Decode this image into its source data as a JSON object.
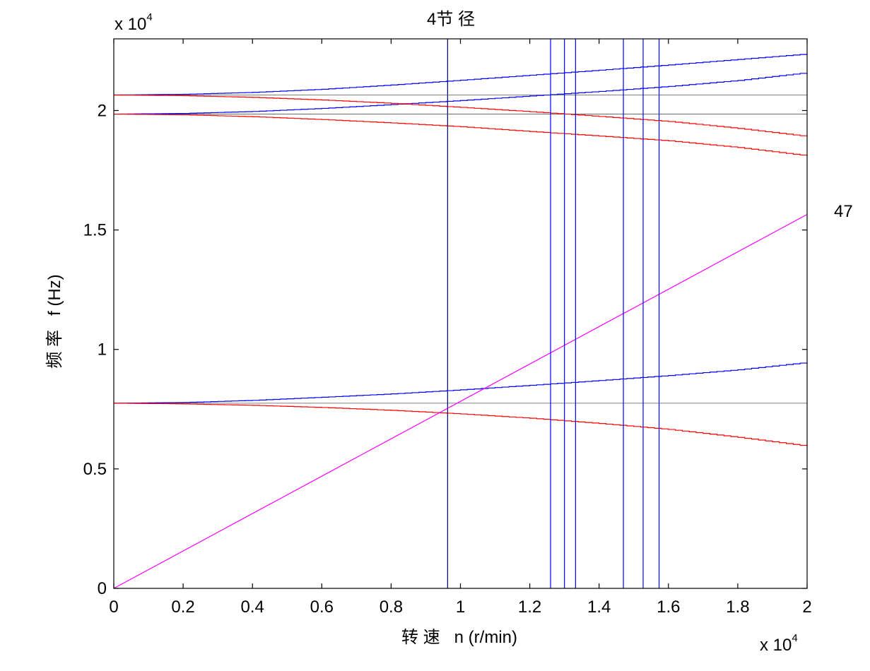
{
  "chart_data": {
    "type": "line",
    "title": "4节 径",
    "xlabel": "转 速   n (r/min)",
    "ylabel": "频 率   f (Hz)",
    "x_exponent": "x 10",
    "x_exponent_power": "4",
    "y_exponent": "x 10",
    "y_exponent_power": "4",
    "xlim": [
      0,
      2
    ],
    "ylim": [
      0,
      2.3
    ],
    "x_ticks": [
      0,
      0.2,
      0.4,
      0.6,
      0.8,
      1,
      1.2,
      1.4,
      1.6,
      1.8,
      2
    ],
    "x_tick_labels": [
      "0",
      "0.2",
      "0.4",
      "0.6",
      "0.8",
      "1",
      "1.2",
      "1.4",
      "1.6",
      "1.8",
      "2"
    ],
    "y_ticks": [
      0,
      0.5,
      1,
      1.5,
      2
    ],
    "y_tick_labels": [
      "0",
      "0.5",
      "1",
      "1.5",
      "2"
    ],
    "annotation": "47",
    "grid": false,
    "colors": {
      "blue": "#0000ff",
      "red": "#ff0000",
      "magenta": "#ff00ff",
      "dark": "#000066",
      "reference": "#555555"
    },
    "series": [
      {
        "color": "blue",
        "style": "step",
        "x": [
          0,
          0.2,
          0.4,
          0.6,
          0.8,
          1.0,
          1.2,
          1.4,
          1.6,
          1.8,
          2.0
        ],
        "y": [
          2.065,
          2.068,
          2.076,
          2.089,
          2.107,
          2.127,
          2.148,
          2.169,
          2.191,
          2.214,
          2.237
        ]
      },
      {
        "color": "blue",
        "style": "step",
        "x": [
          0,
          0.2,
          0.4,
          0.6,
          0.8,
          1.0,
          1.2,
          1.4,
          1.6,
          1.8,
          2.0
        ],
        "y": [
          1.985,
          1.988,
          1.996,
          2.009,
          2.025,
          2.042,
          2.061,
          2.08,
          2.101,
          2.126,
          2.159
        ]
      },
      {
        "color": "red",
        "style": "step",
        "x": [
          0,
          0.2,
          0.4,
          0.6,
          0.8,
          1.0,
          1.2,
          1.4,
          1.6,
          1.8,
          2.0
        ],
        "y": [
          2.065,
          2.062,
          2.055,
          2.044,
          2.03,
          2.013,
          1.995,
          1.975,
          1.954,
          1.925,
          1.891
        ]
      },
      {
        "color": "red",
        "style": "step",
        "x": [
          0,
          0.2,
          0.4,
          0.6,
          0.8,
          1.0,
          1.2,
          1.4,
          1.6,
          1.8,
          2.0
        ],
        "y": [
          1.985,
          1.982,
          1.974,
          1.962,
          1.948,
          1.932,
          1.912,
          1.893,
          1.873,
          1.845,
          1.81
        ]
      },
      {
        "color": "blue",
        "style": "step",
        "x": [
          0,
          0.2,
          0.4,
          0.6,
          0.8,
          1.0,
          1.2,
          1.4,
          1.6,
          1.8,
          2.0
        ],
        "y": [
          0.775,
          0.778,
          0.787,
          0.8,
          0.814,
          0.831,
          0.85,
          0.87,
          0.891,
          0.915,
          0.946
        ]
      },
      {
        "color": "red",
        "style": "step",
        "x": [
          0,
          0.2,
          0.4,
          0.6,
          0.8,
          1.0,
          1.2,
          1.4,
          1.6,
          1.8,
          2.0
        ],
        "y": [
          0.775,
          0.772,
          0.766,
          0.757,
          0.745,
          0.73,
          0.712,
          0.69,
          0.665,
          0.632,
          0.595
        ]
      },
      {
        "color": "magenta",
        "style": "line",
        "x": [
          0,
          2.0
        ],
        "y": [
          0,
          1.565
        ]
      }
    ],
    "reference_lines_y": [
      2.065,
      1.985,
      0.775
    ],
    "vertical_lines": [
      {
        "x": 0.963,
        "color": "dark"
      },
      {
        "x": 1.26,
        "color": "blue"
      },
      {
        "x": 1.3,
        "color": "blue"
      },
      {
        "x": 1.332,
        "color": "blue"
      },
      {
        "x": 1.47,
        "color": "blue"
      },
      {
        "x": 1.527,
        "color": "blue"
      },
      {
        "x": 1.573,
        "color": "blue"
      }
    ]
  }
}
